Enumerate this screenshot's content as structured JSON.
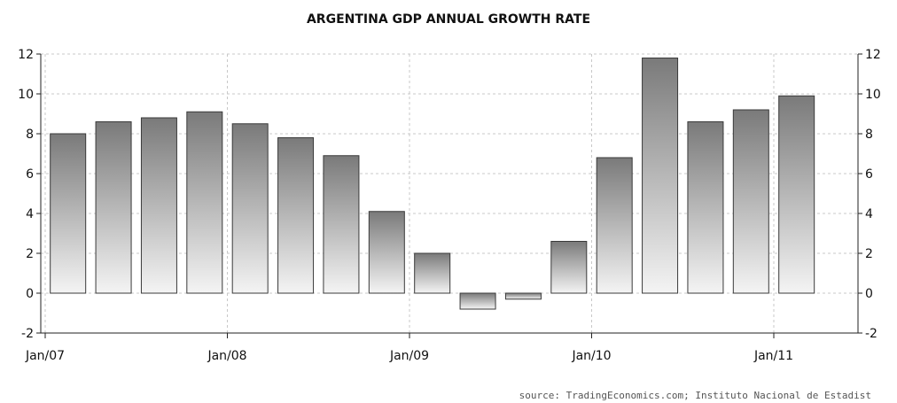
{
  "chart_data": {
    "type": "bar",
    "title": "ARGENTINA GDP ANNUAL GROWTH RATE",
    "source": "source: TradingEconomics.com; Instituto Nacional de Estadist",
    "categories": [
      "2007 Q1",
      "2007 Q2",
      "2007 Q3",
      "2007 Q4",
      "2008 Q1",
      "2008 Q2",
      "2008 Q3",
      "2008 Q4",
      "2009 Q1",
      "2009 Q2",
      "2009 Q3",
      "2009 Q4",
      "2010 Q1",
      "2010 Q2",
      "2010 Q3",
      "2010 Q4",
      "2011 Q1"
    ],
    "values": [
      8.0,
      8.6,
      8.8,
      9.1,
      8.5,
      7.8,
      6.9,
      4.1,
      2.0,
      -0.8,
      -0.3,
      2.6,
      6.8,
      11.8,
      8.6,
      9.2,
      9.9
    ],
    "ylim": [
      -2,
      12
    ],
    "y_ticks": [
      "12",
      "10",
      "8",
      "6",
      "4",
      "2",
      "0",
      "-2"
    ],
    "x_tick_labels": [
      "Jan/07",
      "Jan/08",
      "Jan/09",
      "Jan/10",
      "Jan/11"
    ],
    "grid": true,
    "bar_gradient": {
      "top": "#7a7a7a",
      "bottom": "#f4f4f4"
    }
  }
}
